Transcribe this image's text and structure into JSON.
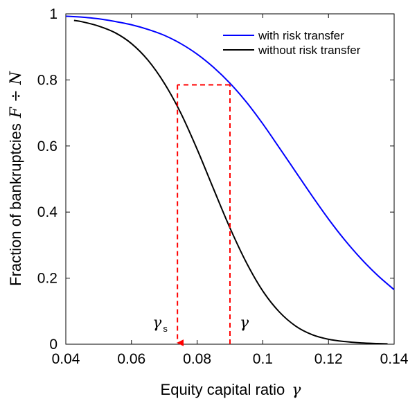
{
  "chart_data": {
    "type": "line",
    "xlabel": "Equity capital ratio",
    "xlabel_symbol": "γ",
    "ylabel": "Fraction of bankruptcies",
    "ylabel_symbol": "F ÷ N",
    "xlim": [
      0.04,
      0.14
    ],
    "ylim": [
      0,
      1
    ],
    "x_ticks": [
      "0.04",
      "0.06",
      "0.08",
      "0.1",
      "0.12",
      "0.14"
    ],
    "y_ticks": [
      "0",
      "0.2",
      "0.4",
      "0.6",
      "0.8",
      "1"
    ],
    "grid": false,
    "legend_position": "top-right",
    "series": [
      {
        "name": "with risk transfer",
        "color": "#0000ff",
        "x": [
          0.04,
          0.045,
          0.05,
          0.055,
          0.06,
          0.065,
          0.07,
          0.075,
          0.08,
          0.085,
          0.09,
          0.095,
          0.1,
          0.105,
          0.11,
          0.115,
          0.12,
          0.125,
          0.13,
          0.135,
          0.14
        ],
        "y": [
          0.993,
          0.99,
          0.985,
          0.977,
          0.967,
          0.953,
          0.935,
          0.91,
          0.878,
          0.838,
          0.79,
          0.733,
          0.667,
          0.595,
          0.522,
          0.449,
          0.379,
          0.315,
          0.258,
          0.208,
          0.165
        ]
      },
      {
        "name": "without risk transfer",
        "color": "#000000",
        "x": [
          0.0425,
          0.045,
          0.05,
          0.055,
          0.06,
          0.065,
          0.07,
          0.075,
          0.08,
          0.085,
          0.09,
          0.095,
          0.1,
          0.105,
          0.11,
          0.115,
          0.12,
          0.125,
          0.13,
          0.135,
          0.138
        ],
        "y": [
          0.98,
          0.976,
          0.963,
          0.943,
          0.91,
          0.86,
          0.79,
          0.7,
          0.59,
          0.47,
          0.352,
          0.247,
          0.161,
          0.098,
          0.055,
          0.029,
          0.015,
          0.008,
          0.004,
          0.002,
          0.001
        ]
      }
    ],
    "annotations": {
      "color": "#ff0000",
      "gamma_x": 0.09,
      "gamma_s_x": 0.074,
      "target_y": 0.785,
      "gamma_label": "γ",
      "gamma_s_label": "γ",
      "gamma_s_subscript": "s"
    }
  }
}
